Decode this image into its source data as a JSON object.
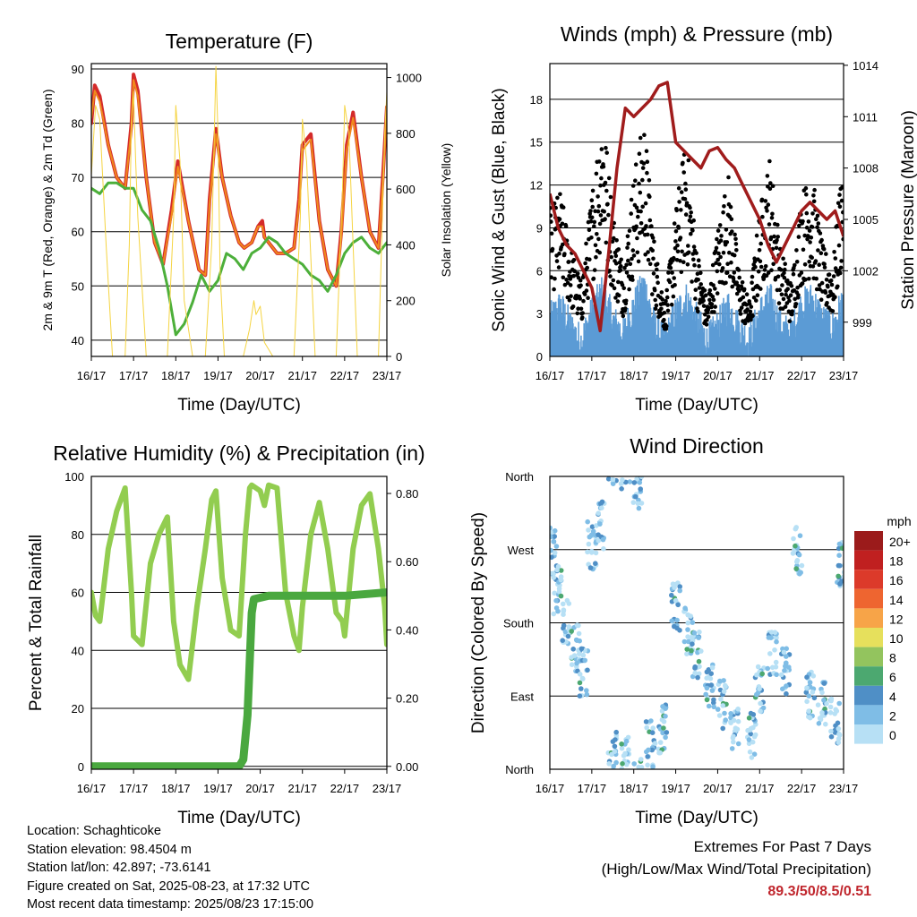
{
  "chart_data": [
    {
      "type": "line",
      "title": "Temperature (F)",
      "xlabel": "Time (Day/UTC)",
      "ylabel": "2m & 9m T (Red, Orange) & 2m Td (Green)",
      "y2label": "Solar Insolation (Yellow)",
      "x_ticks": [
        "16/17",
        "17/17",
        "18/17",
        "19/17",
        "20/17",
        "21/17",
        "22/17",
        "23/17"
      ],
      "xlim": [
        0,
        7
      ],
      "ylim": [
        37,
        91
      ],
      "y_ticks": [
        40,
        50,
        60,
        70,
        80,
        90
      ],
      "y2lim": [
        0,
        1050
      ],
      "y2_ticks": [
        0,
        200,
        400,
        600,
        800,
        1000
      ],
      "grid": true,
      "series": [
        {
          "name": "2m T",
          "color": "#d42a2a",
          "x": [
            0,
            0.08,
            0.2,
            0.4,
            0.6,
            0.8,
            0.95,
            1.0,
            1.1,
            1.3,
            1.5,
            1.7,
            1.9,
            2.05,
            2.3,
            2.55,
            2.7,
            2.8,
            2.95,
            3.1,
            3.3,
            3.5,
            3.62,
            3.8,
            3.95,
            4.05,
            4.1,
            4.2,
            4.4,
            4.6,
            4.8,
            4.92,
            5.0,
            5.2,
            5.4,
            5.6,
            5.8,
            5.92,
            6.05,
            6.2,
            6.4,
            6.6,
            6.8,
            6.92,
            7.0
          ],
          "values": [
            80,
            87,
            85,
            76,
            70,
            68,
            80,
            89,
            86,
            70,
            58,
            54,
            64,
            73,
            62,
            53,
            52,
            66,
            79,
            70,
            63,
            58,
            57,
            58,
            61,
            62,
            59,
            58,
            56,
            56,
            57,
            66,
            76,
            78,
            62,
            53,
            50,
            60,
            76,
            82,
            70,
            60,
            57,
            72,
            83
          ]
        },
        {
          "name": "9m T",
          "color": "#f08a1c",
          "x": [
            0,
            0.08,
            0.2,
            0.4,
            0.6,
            0.8,
            0.95,
            1.0,
            1.1,
            1.3,
            1.5,
            1.7,
            1.9,
            2.05,
            2.3,
            2.55,
            2.7,
            2.8,
            2.95,
            3.1,
            3.3,
            3.5,
            3.62,
            3.8,
            3.95,
            4.05,
            4.1,
            4.2,
            4.4,
            4.6,
            4.8,
            4.92,
            5.0,
            5.2,
            5.4,
            5.6,
            5.8,
            5.92,
            6.05,
            6.2,
            6.4,
            6.6,
            6.8,
            6.92,
            7.0
          ],
          "values": [
            81,
            86,
            84,
            76,
            70,
            68,
            79,
            88,
            85,
            70,
            58,
            54,
            63,
            72,
            62,
            53,
            52,
            65,
            78,
            70,
            63,
            58,
            57,
            58,
            61,
            61,
            59,
            58,
            56,
            56,
            57,
            65,
            75,
            77,
            62,
            53,
            50,
            59,
            75,
            81,
            70,
            60,
            57,
            71,
            82
          ]
        },
        {
          "name": "2m Td",
          "color": "#4caf3a",
          "x": [
            0,
            0.2,
            0.4,
            0.6,
            0.8,
            1.0,
            1.2,
            1.4,
            1.6,
            1.8,
            2.0,
            2.2,
            2.4,
            2.6,
            2.8,
            3.0,
            3.2,
            3.4,
            3.6,
            3.8,
            4.0,
            4.2,
            4.4,
            4.6,
            4.8,
            5.0,
            5.2,
            5.4,
            5.6,
            5.8,
            6.0,
            6.2,
            6.4,
            6.6,
            6.8,
            7.0
          ],
          "values": [
            68,
            67,
            69,
            69,
            68,
            68,
            64,
            62,
            57,
            50,
            41,
            43,
            47,
            52,
            49,
            51,
            56,
            55,
            53,
            56,
            57,
            59,
            58,
            56,
            55,
            54,
            52,
            51,
            49,
            52,
            56,
            58,
            59,
            57,
            56,
            58
          ]
        },
        {
          "name": "Solar Insolation",
          "color": "#f5d442",
          "axis": "y2",
          "x": [
            0,
            0.1,
            0.2,
            0.35,
            0.5,
            0.6,
            0.8,
            0.9,
            0.95,
            1.0,
            1.05,
            1.1,
            1.3,
            1.6,
            1.8,
            1.95,
            2.0,
            2.1,
            2.2,
            2.4,
            2.7,
            2.85,
            2.95,
            3.0,
            3.05,
            3.15,
            3.3,
            3.6,
            3.75,
            3.85,
            3.9,
            4.0,
            4.1,
            4.3,
            4.6,
            4.8,
            4.95,
            5.0,
            5.1,
            5.3,
            5.6,
            5.8,
            5.95,
            6.0,
            6.1,
            6.3,
            6.6,
            6.8,
            6.95,
            7.0
          ],
          "values": [
            650,
            900,
            850,
            400,
            0,
            0,
            0,
            400,
            850,
            950,
            700,
            500,
            0,
            0,
            0,
            500,
            900,
            700,
            200,
            0,
            0,
            400,
            1040,
            800,
            300,
            0,
            0,
            0,
            100,
            200,
            150,
            180,
            50,
            0,
            0,
            0,
            500,
            850,
            700,
            0,
            0,
            0,
            600,
            900,
            800,
            0,
            0,
            0,
            800,
            950
          ]
        }
      ]
    },
    {
      "type": "scatter",
      "title": "Winds (mph) & Pressure (mb)",
      "xlabel": "Time (Day/UTC)",
      "ylabel": "Sonic Wind & Gust (Blue, Black)",
      "y2label": "Station Pressure (Maroon)",
      "x_ticks": [
        "16/17",
        "17/17",
        "18/17",
        "19/17",
        "20/17",
        "21/17",
        "22/17",
        "23/17"
      ],
      "xlim": [
        0,
        7
      ],
      "ylim": [
        0,
        20.5
      ],
      "y_ticks": [
        0,
        3,
        6,
        9,
        12,
        15,
        18
      ],
      "y2lim": [
        997.0,
        1014.1
      ],
      "y2_ticks": [
        999,
        1002,
        1005,
        1008,
        1011,
        1014
      ],
      "grid": true,
      "series": [
        {
          "name": "Sonic Wind",
          "color": "#5b9bd5",
          "x": [
            0,
            0.25,
            0.5,
            0.75,
            1.0,
            1.25,
            1.5,
            1.75,
            2.0,
            2.25,
            2.5,
            2.75,
            3.0,
            3.25,
            3.5,
            3.75,
            4.0,
            4.25,
            4.5,
            4.75,
            5.0,
            5.25,
            5.5,
            5.75,
            6.0,
            6.25,
            6.5,
            6.75,
            7.0
          ],
          "values": [
            2.5,
            3.5,
            2.0,
            1.0,
            3.0,
            4.5,
            2.5,
            1.5,
            3.5,
            5.0,
            2.0,
            1.0,
            3.0,
            4.0,
            2.5,
            1.0,
            2.0,
            3.5,
            2.0,
            1.0,
            3.0,
            4.0,
            2.0,
            1.5,
            3.5,
            4.0,
            2.5,
            2.0,
            4.0
          ]
        },
        {
          "name": "Gust",
          "color": "#000000",
          "x": [
            0,
            0.25,
            0.5,
            0.75,
            1.0,
            1.25,
            1.5,
            1.75,
            2.0,
            2.25,
            2.5,
            2.75,
            3.0,
            3.25,
            3.5,
            3.75,
            4.0,
            4.25,
            4.5,
            4.75,
            5.0,
            5.25,
            5.5,
            5.75,
            6.0,
            6.25,
            6.5,
            6.75,
            7.0
          ],
          "values": [
            8,
            9,
            6,
            4,
            9,
            14,
            8,
            5,
            10,
            13,
            6,
            3,
            8,
            12,
            6,
            3,
            7,
            10,
            5,
            3,
            8,
            11,
            6,
            4,
            9,
            10,
            6,
            5,
            12
          ]
        },
        {
          "name": "Station Pressure",
          "color": "#a01c1c",
          "axis": "y2",
          "x": [
            0,
            0.2,
            0.4,
            0.6,
            0.8,
            1.0,
            1.2,
            1.4,
            1.6,
            1.8,
            2.0,
            2.2,
            2.4,
            2.6,
            2.8,
            3.0,
            3.2,
            3.4,
            3.6,
            3.8,
            4.0,
            4.2,
            4.4,
            4.6,
            4.8,
            5.0,
            5.2,
            5.4,
            5.6,
            5.8,
            6.0,
            6.2,
            6.4,
            6.6,
            6.8,
            7.0
          ],
          "values": [
            1006.5,
            1004.5,
            1003.5,
            1003.0,
            1002.0,
            1001.0,
            998.5,
            1003.0,
            1008.0,
            1011.5,
            1011.0,
            1011.5,
            1012.0,
            1012.8,
            1013.0,
            1009.5,
            1009.0,
            1008.5,
            1008.0,
            1009.0,
            1009.2,
            1008.5,
            1008.0,
            1007.0,
            1006.0,
            1005.0,
            1003.5,
            1002.5,
            1003.5,
            1004.5,
            1005.5,
            1006.0,
            1005.5,
            1005.0,
            1005.5,
            1004.0
          ]
        }
      ]
    },
    {
      "type": "line",
      "title": "Relative Humidity (%) & Precipitation (in)",
      "xlabel": "Time (Day/UTC)",
      "ylabel": "Percent & Total Rainfall",
      "x_ticks": [
        "16/17",
        "17/17",
        "18/17",
        "19/17",
        "20/17",
        "21/17",
        "22/17",
        "23/17"
      ],
      "xlim": [
        0,
        7
      ],
      "ylim": [
        -1,
        100
      ],
      "y_ticks": [
        0,
        20,
        40,
        60,
        80,
        100
      ],
      "y2lim": [
        -0.0085,
        0.85
      ],
      "y2_ticks": [
        "0.00",
        "0.20",
        "0.40",
        "0.60",
        "0.80"
      ],
      "grid": true,
      "series": [
        {
          "name": "Relative Humidity",
          "color": "#92cd50",
          "x": [
            0,
            0.1,
            0.2,
            0.4,
            0.6,
            0.8,
            0.95,
            1.0,
            1.2,
            1.4,
            1.6,
            1.8,
            1.95,
            2.1,
            2.3,
            2.5,
            2.7,
            2.85,
            2.95,
            3.1,
            3.3,
            3.5,
            3.65,
            3.75,
            3.8,
            4.0,
            4.1,
            4.2,
            4.4,
            4.6,
            4.8,
            4.92,
            5.0,
            5.2,
            5.4,
            5.6,
            5.8,
            5.95,
            6.0,
            6.2,
            6.4,
            6.6,
            6.8,
            6.95,
            7.0
          ],
          "values": [
            60,
            52,
            50,
            75,
            88,
            96,
            60,
            45,
            42,
            70,
            80,
            86,
            50,
            35,
            30,
            55,
            75,
            92,
            95,
            65,
            47,
            45,
            80,
            96,
            97,
            95,
            90,
            97,
            96,
            60,
            45,
            40,
            55,
            80,
            91,
            75,
            53,
            50,
            45,
            75,
            90,
            94,
            75,
            55,
            42
          ]
        },
        {
          "name": "Precipitation",
          "color": "#4aa83f",
          "axis": "y2",
          "x": [
            0,
            3.5,
            3.55,
            3.6,
            3.7,
            3.8,
            3.85,
            4.2,
            5.0,
            6.0,
            7.0
          ],
          "values": [
            0.0,
            0.0,
            0.01,
            0.02,
            0.15,
            0.45,
            0.49,
            0.5,
            0.5,
            0.5,
            0.51
          ]
        }
      ]
    },
    {
      "type": "scatter",
      "title": "Wind Direction",
      "xlabel": "Time (Day/UTC)",
      "ylabel": "Direction (Colored By Speed)",
      "x_ticks": [
        "16/17",
        "17/17",
        "18/17",
        "19/17",
        "20/17",
        "21/17",
        "22/17",
        "23/17"
      ],
      "y_ticks": [
        "North",
        "East",
        "South",
        "West",
        "North"
      ],
      "xlim": [
        0,
        7
      ],
      "ylim": [
        0,
        360
      ],
      "legend": {
        "title": "mph",
        "position": "right",
        "labels": [
          "20+",
          "18",
          "16",
          "14",
          "12",
          "10",
          "8",
          "6",
          "4",
          "2",
          "0"
        ],
        "colors": [
          "#9b1b1b",
          "#c02020",
          "#dc3a2a",
          "#ee6530",
          "#f7a448",
          "#e6e05c",
          "#93c45e",
          "#4ca870",
          "#4f8fc6",
          "#7fbde6",
          "#b7e0f5"
        ]
      },
      "series": [
        {
          "name": "direction",
          "x": [
            0.05,
            0.2,
            0.4,
            0.6,
            0.8,
            1.0,
            1.2,
            1.5,
            1.8,
            2.1,
            2.4,
            2.7,
            3.0,
            3.3,
            3.5,
            3.8,
            4.1,
            4.4,
            4.8,
            5.0,
            5.3,
            5.6,
            5.9,
            6.2,
            6.5,
            6.8,
            6.95
          ],
          "values": [
            270,
            220,
            180,
            150,
            120,
            275,
            300,
            20,
            10,
            350,
            30,
            50,
            200,
            170,
            140,
            100,
            80,
            50,
            40,
            100,
            140,
            120,
            270,
            90,
            80,
            60,
            250
          ]
        }
      ]
    }
  ],
  "info": {
    "location": "Location: Schaghticoke",
    "elevation": "Station elevation: 98.4504 m",
    "latlon": "Station lat/lon: 42.897; -73.6141",
    "created": "Figure created on Sat, 2025-08-23, at 17:32 UTC",
    "recent": "Most recent data timestamp: 2025/08/23 17:15:00"
  },
  "extremes": {
    "title": "Extremes For Past 7 Days",
    "subtitle": "(High/Low/Max Wind/Total Precipitation)",
    "values": "89.3/50/8.5/0.51"
  }
}
